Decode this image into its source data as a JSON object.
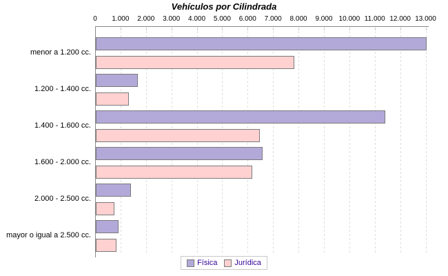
{
  "chart_data": {
    "type": "bar",
    "orientation": "horizontal",
    "title": "Vehículos por Cilindrada",
    "categories": [
      "menor a 1.200 cc.",
      "1.200 - 1.400 cc.",
      "1.400 - 1.600 cc.",
      "1.600 - 2.000 cc.",
      "2.000 - 2.500 cc.",
      "mayor o igual a 2.500 cc."
    ],
    "series": [
      {
        "name": "Física",
        "color": "#b3a9d9",
        "values": [
          13000,
          1650,
          11400,
          6550,
          1380,
          900
        ]
      },
      {
        "name": "Jurídica",
        "color": "#ffd1d1",
        "values": [
          7800,
          1300,
          6450,
          6150,
          730,
          810
        ]
      }
    ],
    "x_axis": {
      "tick_values": [
        0,
        1000,
        2000,
        3000,
        4000,
        5000,
        6000,
        7000,
        8000,
        9000,
        10000,
        11000,
        12000,
        13000
      ],
      "tick_labels": [
        "0",
        "1.000",
        "2.000",
        "3.000",
        "4.000",
        "5.000",
        "6.000",
        "7.000",
        "8.000",
        "9.000",
        "10.000",
        "11.000",
        "12.000",
        "13.000"
      ],
      "position": "top"
    },
    "xlim": [
      0,
      13100
    ],
    "grid": "vertical-dashed",
    "legend_position": "bottom",
    "colors": {
      "axis": "#888888",
      "gridline": "#dcdcdc",
      "bar_border": "#7a7a7a",
      "legend_text": "#330099",
      "title_text": "#000000"
    }
  }
}
